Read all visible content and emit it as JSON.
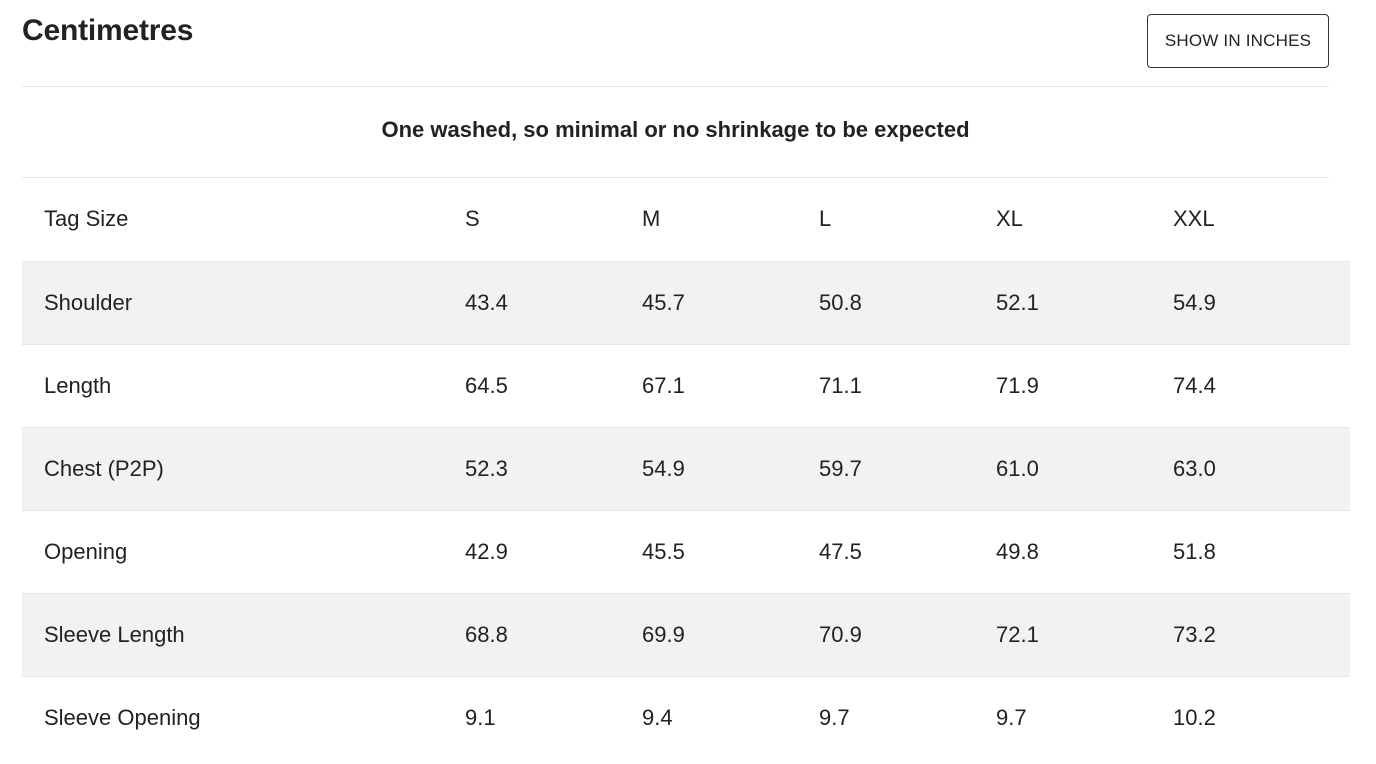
{
  "header": {
    "title": "Centimetres",
    "toggle_label": "SHOW IN INCHES"
  },
  "note": "One washed, so minimal or no shrinkage to be expected",
  "table": {
    "header_label": "Tag Size",
    "sizes": [
      "S",
      "M",
      "L",
      "XL",
      "XXL"
    ],
    "rows": [
      {
        "label": "Shoulder",
        "values": [
          "43.4",
          "45.7",
          "50.8",
          "52.1",
          "54.9"
        ]
      },
      {
        "label": "Length",
        "values": [
          "64.5",
          "67.1",
          "71.1",
          "71.9",
          "74.4"
        ]
      },
      {
        "label": "Chest (P2P)",
        "values": [
          "52.3",
          "54.9",
          "59.7",
          "61.0",
          "63.0"
        ]
      },
      {
        "label": "Opening",
        "values": [
          "42.9",
          "45.5",
          "47.5",
          "49.8",
          "51.8"
        ]
      },
      {
        "label": "Sleeve Length",
        "values": [
          "68.8",
          "69.9",
          "70.9",
          "72.1",
          "73.2"
        ]
      },
      {
        "label": "Sleeve Opening",
        "values": [
          "9.1",
          "9.4",
          "9.7",
          "9.7",
          "10.2"
        ]
      }
    ]
  }
}
